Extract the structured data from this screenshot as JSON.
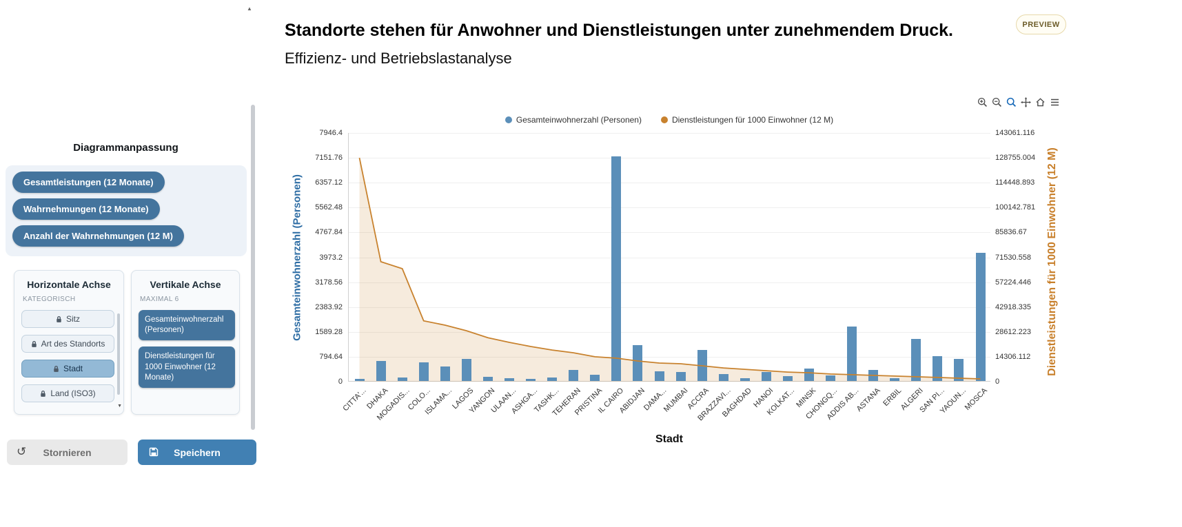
{
  "header": {
    "title": "Standorte stehen für Anwohner und Dienstleistungen unter zunehmendem Druck.",
    "subtitle": "Effizienz- und Betriebslastanalyse",
    "preview_badge": "PREVIEW"
  },
  "icons": {
    "undo": "↺",
    "scroll_up": "▲",
    "scroll_down": "▼"
  },
  "theme": {
    "accent_blue": "#44749d",
    "selected_item_blue": "#93b9d6",
    "save_button_blue": "#4180b3",
    "panel_background": "#edf2f8",
    "preview_border": "#e7d9ab"
  },
  "sidebar": {
    "heading": "Diagrammanpassung",
    "metric_pills": [
      "Gesamtleistungen (12 Monate)",
      "Wahrnehmungen (12 Monate)",
      "Anzahl der Wahrnehmungen (12 M)"
    ],
    "horizontal_axis": {
      "title": "Horizontale Achse",
      "subtitle": "KATEGORISCH",
      "items": [
        {
          "label": "Sitz",
          "locked": true,
          "selected": false
        },
        {
          "label": "Art des Standorts",
          "locked": true,
          "selected": false
        },
        {
          "label": "Stadt",
          "locked": true,
          "selected": true
        },
        {
          "label": "Land (ISO3)",
          "locked": true,
          "selected": false
        }
      ]
    },
    "vertical_axis": {
      "title": "Vertikale Achse",
      "subtitle": "MAXIMAL 6",
      "items": [
        {
          "label": "Gesamteinwohnerzahl (Personen)",
          "selected": true
        },
        {
          "label": "Dienstleistungen für 1000 Einwohner (12 Monate)",
          "selected": true
        }
      ]
    },
    "buttons": {
      "cancel": "Stornieren",
      "save": "Speichern"
    }
  },
  "chart": {
    "toolbar_icons": [
      "zoom-in-icon",
      "zoom-out-icon",
      "box-zoom-icon",
      "pan-icon",
      "home-icon",
      "menu-icon"
    ]
  },
  "chart_data": {
    "type": "combo_bar_line",
    "title": "",
    "xlabel": "Stadt",
    "legend_position": "top-center",
    "grid": true,
    "categories": [
      "CITTA'...",
      "DHAKA",
      "MOGADIS...",
      "COLO...",
      "ISLAMA...",
      "LAGOS",
      "YANGON",
      "ULAAN...",
      "ASHGA...",
      "TASHK...",
      "TEHERAN",
      "PRISTINA",
      "IL CAIRO",
      "ABIDJAN",
      "DAMA...",
      "MUMBAI",
      "ACCRA",
      "BRAZZAVI...",
      "BAGHDAD",
      "HANOI",
      "KOLKAT...",
      "MINSK",
      "CHONGQ...",
      "ADDIS AB...",
      "ASTANA",
      "ERBIL",
      "ALGERI",
      "SAN PI...",
      "YAOUN...",
      "MOSCA"
    ],
    "series": [
      {
        "name": "Gesamteinwohnerzahl (Personen)",
        "type": "bar",
        "axis": "left",
        "color": "#5b8fb9",
        "values": [
          60,
          650,
          110,
          590,
          460,
          700,
          130,
          90,
          70,
          110,
          350,
          200,
          7170,
          1150,
          310,
          290,
          1000,
          220,
          90,
          290,
          150,
          400,
          180,
          1750,
          350,
          90,
          1350,
          800,
          700,
          4100
        ]
      },
      {
        "name": "Dienstleistungen für 1000 Einwohner (12 M)",
        "type": "area-line",
        "axis": "right",
        "color": "#c8822e",
        "fill": "rgba(200,130,46,0.16)",
        "values": [
          128755,
          69000,
          65000,
          35000,
          32500,
          29300,
          25300,
          22600,
          20200,
          18200,
          16600,
          14300,
          13500,
          11900,
          10700,
          10300,
          9100,
          7900,
          7100,
          6300,
          5500,
          5100,
          4400,
          4000,
          3600,
          3200,
          2800,
          2400,
          2000,
          1600
        ]
      }
    ],
    "left_axis": {
      "label": "Gesamteinwohnerzahl (Personen)",
      "color": "#2e6da4",
      "min": 0,
      "max": 7946.4,
      "ticks": [
        0,
        794.64,
        1589.28,
        2383.92,
        3178.56,
        3973.2,
        4767.84,
        5562.48,
        6357.12,
        7151.76,
        7946.4
      ]
    },
    "right_axis": {
      "label": "Dienstleistungen für 1000 Einwohner (12 M)",
      "color": "#c87f2a",
      "min": 0,
      "max": 143061.116,
      "ticks": [
        0,
        14306.112,
        28612.223,
        42918.335,
        57224.446,
        71530.558,
        85836.67,
        100142.781,
        114448.893,
        128755.004,
        143061.116
      ]
    }
  }
}
